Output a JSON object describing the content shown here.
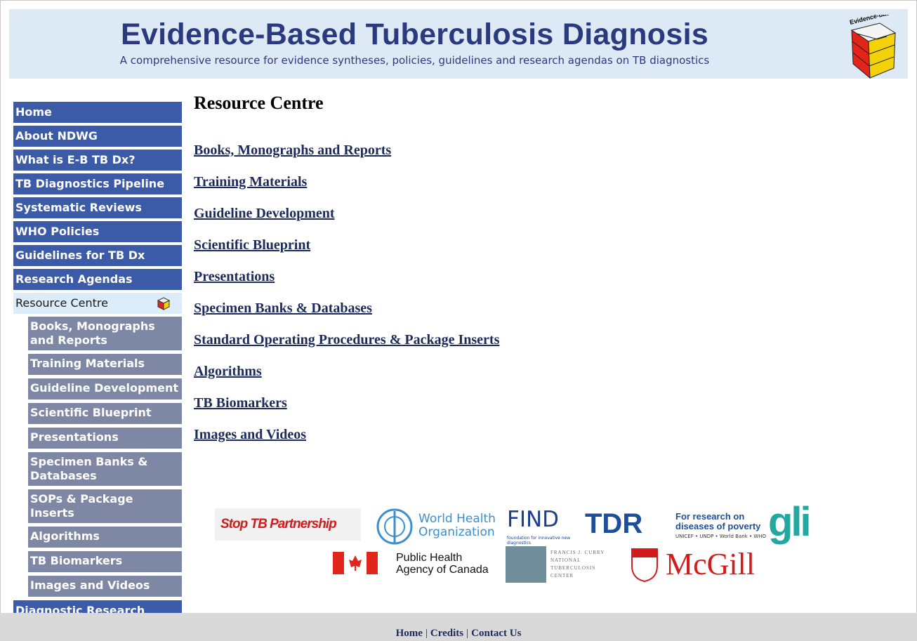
{
  "header": {
    "title": "Evidence-Based Tuberculosis Diagnosis",
    "subtitle": "A comprehensive resource for evidence syntheses, policies, guidelines and research agendas on TB diagnostics",
    "logo_text": "Evidence-based TB Diagnosis"
  },
  "nav": {
    "items": [
      "Home",
      "About NDWG",
      "What is E-B TB Dx?",
      "TB Diagnostics Pipeline",
      "Systematic Reviews",
      "WHO Policies",
      "Guidelines for TB Dx",
      "Research Agendas",
      "Resource Centre"
    ],
    "active": 8,
    "subitems": [
      "Books, Monographs and Reports",
      "Training Materials",
      "Guideline Development",
      "Scientific Blueprint",
      "Presentations",
      "Specimen Banks & Databases",
      "SOPs & Package Inserts",
      "Algorithms",
      "TB Biomarkers",
      "Images and Videos"
    ],
    "after": [
      "Diagnostic Research"
    ]
  },
  "content": {
    "heading": "Resource Centre",
    "links": [
      "Books, Monographs and Reports",
      "Training Materials",
      "Guideline Development",
      "Scientific Blueprint",
      "Presentations",
      "Specimen Banks & Databases",
      "Standard Operating Procedures & Package Inserts",
      "Algorithms",
      "TB Biomarkers",
      "Images and Videos"
    ]
  },
  "partners": {
    "stoptb": "Stop TB Partnership",
    "who": "World Health Organization",
    "find": "FIND",
    "find_sub": "foundation for innovative new diagnostics",
    "tdr": "TDR",
    "tdr_tag": "For research on diseases of poverty",
    "tdr_sub": "UNICEF • UNDP • World Bank • WHO",
    "gli": "gli",
    "phac": "Public Health Agency of Canada",
    "curry": "FRANCIS J. CURRY NATIONAL TUBERCULOSIS CENTER",
    "mcgill": "McGill"
  },
  "footer": {
    "links": [
      "Home",
      "Credits",
      "Contact Us"
    ],
    "separator": "|"
  }
}
